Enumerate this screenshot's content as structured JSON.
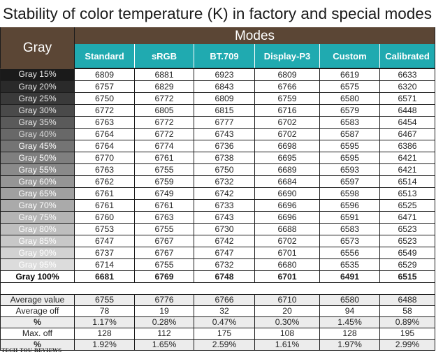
{
  "title": "Stability of color temperature (K) in factory and special modes",
  "header": {
    "gray_label": "Gray",
    "modes_label": "Modes",
    "columns": [
      "Standard",
      "sRGB",
      "BT.709",
      "Display-P3",
      "Custom",
      "Calibrated"
    ]
  },
  "colors": {
    "header_brown": "#5b4635",
    "header_teal": "#20aab0",
    "gray_ramp": [
      "#1a1a1a",
      "#2a2a2a",
      "#3a3a3a",
      "#4a4a4a",
      "#5a5a5a",
      "#686868",
      "#747474",
      "#7f7f7f",
      "#8a8a8a",
      "#959595",
      "#a0a0a0",
      "#aaaaaa",
      "#b4b4b4",
      "#bebebe",
      "#c8c8c8",
      "#d2d2d2",
      "#dcdcdc",
      "#ffffff"
    ]
  },
  "rows": [
    {
      "label": "Gray 15%",
      "values": [
        "6809",
        "6881",
        "6923",
        "6809",
        "6619",
        "6633"
      ]
    },
    {
      "label": "Gray 20%",
      "values": [
        "6757",
        "6829",
        "6843",
        "6766",
        "6575",
        "6320"
      ]
    },
    {
      "label": "Gray 25%",
      "values": [
        "6750",
        "6772",
        "6809",
        "6759",
        "6580",
        "6571"
      ]
    },
    {
      "label": "Gray 30%",
      "values": [
        "6772",
        "6805",
        "6815",
        "6716",
        "6579",
        "6448"
      ]
    },
    {
      "label": "Gray 35%",
      "values": [
        "6763",
        "6772",
        "6777",
        "6702",
        "6583",
        "6454"
      ]
    },
    {
      "label": "Gray 40%",
      "values": [
        "6764",
        "6772",
        "6743",
        "6702",
        "6587",
        "6467"
      ]
    },
    {
      "label": "Gray 45%",
      "values": [
        "6764",
        "6774",
        "6736",
        "6698",
        "6595",
        "6386"
      ]
    },
    {
      "label": "Gray 50%",
      "values": [
        "6770",
        "6761",
        "6738",
        "6695",
        "6595",
        "6421"
      ]
    },
    {
      "label": "Gray 55%",
      "values": [
        "6763",
        "6755",
        "6750",
        "6689",
        "6593",
        "6421"
      ]
    },
    {
      "label": "Gray 60%",
      "values": [
        "6762",
        "6759",
        "6732",
        "6684",
        "6597",
        "6514"
      ]
    },
    {
      "label": "Gray 65%",
      "values": [
        "6761",
        "6749",
        "6742",
        "6690",
        "6598",
        "6513"
      ]
    },
    {
      "label": "Gray 70%",
      "values": [
        "6761",
        "6761",
        "6733",
        "6696",
        "6596",
        "6525"
      ]
    },
    {
      "label": "Gray 75%",
      "values": [
        "6760",
        "6763",
        "6743",
        "6696",
        "6591",
        "6471"
      ]
    },
    {
      "label": "Gray 80%",
      "values": [
        "6753",
        "6755",
        "6730",
        "6688",
        "6583",
        "6523"
      ]
    },
    {
      "label": "Gray 85%",
      "values": [
        "6747",
        "6767",
        "6742",
        "6702",
        "6573",
        "6523"
      ]
    },
    {
      "label": "Gray 90%",
      "values": [
        "6737",
        "6767",
        "6747",
        "6701",
        "6556",
        "6549"
      ]
    },
    {
      "label": "Gray 95%",
      "values": [
        "6714",
        "6755",
        "6732",
        "6680",
        "6535",
        "6529"
      ]
    },
    {
      "label": "Gray 100%",
      "values": [
        "6681",
        "6769",
        "6748",
        "6701",
        "6491",
        "6515"
      ]
    }
  ],
  "summary": [
    {
      "label": "Average value",
      "values": [
        "6755",
        "6776",
        "6766",
        "6710",
        "6580",
        "6488"
      ]
    },
    {
      "label": "Average off",
      "values": [
        "78",
        "19",
        "32",
        "20",
        "94",
        "58"
      ]
    },
    {
      "label": "%",
      "values": [
        "1.17%",
        "0.28%",
        "0.47%",
        "0.30%",
        "1.45%",
        "0.89%"
      ]
    },
    {
      "label": "Max. off",
      "values": [
        "128",
        "112",
        "175",
        "108",
        "128",
        "195"
      ]
    },
    {
      "label": "%",
      "values": [
        "1.92%",
        "1.65%",
        "2.59%",
        "1.61%",
        "1.97%",
        "2.99%"
      ]
    }
  ],
  "watermark": "TECH TOU REVIEWS"
}
